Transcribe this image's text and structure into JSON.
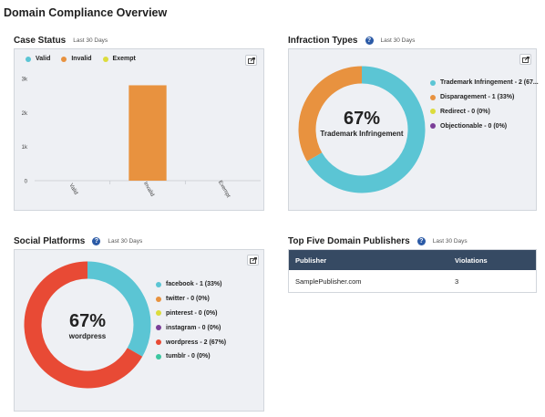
{
  "page": {
    "title": "Domain Compliance Overview"
  },
  "case_status": {
    "title": "Case Status",
    "period": "Last 30 Days",
    "legend": [
      {
        "label": "Valid",
        "color": "#5bc5d4"
      },
      {
        "label": "Invalid",
        "color": "#e8923f"
      },
      {
        "label": "Exempt",
        "color": "#dcdc3c"
      }
    ],
    "chart_data": {
      "type": "bar",
      "categories": [
        "Valid",
        "Invalid",
        "Exempt"
      ],
      "values": [
        0,
        2800,
        0
      ],
      "colors": [
        "#5bc5d4",
        "#e8923f",
        "#dcdc3c"
      ],
      "y_ticks": [
        "0",
        "1k",
        "2k",
        "3k"
      ],
      "ylim": [
        0,
        3000
      ],
      "title": "",
      "xlabel": "",
      "ylabel": ""
    }
  },
  "infraction_types": {
    "title": "Infraction Types",
    "period": "Last 30 Days",
    "center_value": "67%",
    "center_label": "Trademark Infringement",
    "legend": [
      {
        "label": "Trademark Infringement - 2 (67...",
        "color": "#5bc5d4"
      },
      {
        "label": "Disparagement - 1 (33%)",
        "color": "#e8923f"
      },
      {
        "label": "Redirect - 0 (0%)",
        "color": "#dcdc3c"
      },
      {
        "label": "Objectionable - 0 (0%)",
        "color": "#7b3f98"
      }
    ],
    "chart_data": {
      "type": "pie",
      "labels": [
        "Trademark Infringement",
        "Disparagement",
        "Redirect",
        "Objectionable"
      ],
      "values": [
        2,
        1,
        0,
        0
      ],
      "colors": [
        "#5bc5d4",
        "#e8923f",
        "#dcdc3c",
        "#7b3f98"
      ]
    }
  },
  "social_platforms": {
    "title": "Social Platforms",
    "period": "Last 30 Days",
    "center_value": "67%",
    "center_label": "wordpress",
    "legend": [
      {
        "label": "facebook - 1 (33%)",
        "color": "#5bc5d4"
      },
      {
        "label": "twitter - 0 (0%)",
        "color": "#e8923f"
      },
      {
        "label": "pinterest - 0 (0%)",
        "color": "#dcdc3c"
      },
      {
        "label": "instagram - 0 (0%)",
        "color": "#7b3f98"
      },
      {
        "label": "wordpress - 2 (67%)",
        "color": "#e84a35"
      },
      {
        "label": "tumblr - 0 (0%)",
        "color": "#3cc7a0"
      }
    ],
    "chart_data": {
      "type": "pie",
      "labels": [
        "facebook",
        "twitter",
        "pinterest",
        "instagram",
        "wordpress",
        "tumblr"
      ],
      "values": [
        1,
        0,
        0,
        0,
        2,
        0
      ],
      "colors": [
        "#5bc5d4",
        "#e8923f",
        "#dcdc3c",
        "#7b3f98",
        "#e84a35",
        "#3cc7a0"
      ]
    }
  },
  "publishers": {
    "title": "Top Five Domain Publishers",
    "period": "Last 30 Days",
    "columns": [
      "Publisher",
      "Violations"
    ],
    "rows": [
      [
        "SamplePublisher.com",
        "3"
      ]
    ]
  },
  "icons": {
    "export": "export-icon",
    "help": "help-icon"
  }
}
